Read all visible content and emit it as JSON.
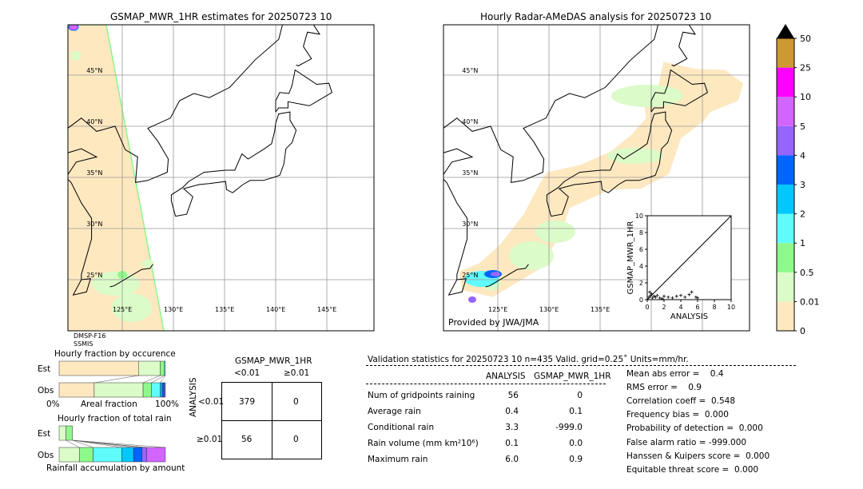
{
  "colors": {
    "cream": "#fde8c0",
    "c001": "#dbfbc8",
    "c05": "#8ef98a",
    "c1": "#60fcfc",
    "c2": "#00c8ff",
    "c3": "#0064ff",
    "c4": "#9664ff",
    "c5": "#d264ff",
    "c10": "#ff00ff",
    "c25": "#cc9933"
  },
  "chart_data": [
    {
      "type": "heatmap",
      "title": "GSMAP_MWR_1HR estimates for 20250723 10",
      "lon_ticks": [
        "125°E",
        "130°E",
        "135°E",
        "140°E",
        "145°E"
      ],
      "lat_ticks": [
        "45°N",
        "40°N",
        "35°N",
        "30°N",
        "25°N"
      ],
      "annotation": [
        "DMSP-F16",
        "SSMIS"
      ]
    },
    {
      "type": "heatmap",
      "title": "Hourly Radar-AMeDAS analysis for 20250723 10",
      "lon_ticks": [
        "125°E",
        "130°E",
        "135°E"
      ],
      "lat_ticks": [
        "45°N",
        "40°N",
        "35°N",
        "30°N",
        "25°N"
      ],
      "annotation": "Provided by JWA/JMA"
    },
    {
      "type": "scatter",
      "xlabel": "ANALYSIS",
      "ylabel": "GSMAP_MWR_1HR",
      "xlim": [
        0,
        10
      ],
      "ylim": [
        0,
        10
      ],
      "ticks": [
        "0",
        "2",
        "4",
        "6",
        "8",
        "10"
      ],
      "points": [
        [
          0.2,
          0.3
        ],
        [
          0.4,
          0.5
        ],
        [
          0.6,
          0.2
        ],
        [
          0.8,
          0.4
        ],
        [
          1.0,
          0.3
        ],
        [
          1.2,
          0.5
        ],
        [
          1.5,
          0.2
        ],
        [
          2.0,
          0.4
        ],
        [
          2.5,
          0.3
        ],
        [
          3.0,
          0.2
        ],
        [
          3.5,
          0.4
        ],
        [
          4.0,
          0.5
        ],
        [
          4.5,
          0.3
        ],
        [
          5.0,
          0.6
        ],
        [
          5.3,
          0.9
        ],
        [
          5.8,
          0.3
        ],
        [
          6.0,
          0.2
        ],
        [
          0.3,
          0.9
        ],
        [
          0.5,
          0.7
        ],
        [
          1.8,
          0.1
        ]
      ]
    },
    {
      "type": "bar",
      "title": "Colorbar",
      "levels": [
        "0",
        "0.01",
        "0.5",
        "1",
        "2",
        "3",
        "4",
        "5",
        "10",
        "25",
        "50"
      ]
    },
    {
      "type": "bar",
      "title": "Hourly fraction by occurence",
      "categories": [
        "Est",
        "Obs"
      ],
      "xlabel": "Areal fraction",
      "x_ticks": [
        "0%",
        "100%"
      ],
      "series": [
        {
          "row": "Est",
          "fractions": [
            0.75,
            0.2,
            0.04,
            0.01
          ]
        },
        {
          "row": "Obs",
          "fractions": [
            0.33,
            0.46,
            0.08,
            0.08,
            0.02,
            0.02,
            0.01
          ]
        }
      ]
    },
    {
      "type": "bar",
      "title": "Hourly fraction of total rain",
      "categories": [
        "Est",
        "Obs"
      ],
      "xlabel": "Rainfall accumulation by amount",
      "series": [
        {
          "row": "Est",
          "fractions": [
            0.065,
            0.06
          ]
        },
        {
          "row": "Obs",
          "fractions": [
            0.19,
            0.13,
            0.27,
            0.11,
            0.08,
            0.045,
            0.175
          ]
        }
      ]
    },
    {
      "type": "table",
      "title": "GSMAP_MWR_1HR",
      "col_headers": [
        "<0.01",
        "≥0.01"
      ],
      "row_label": "ANALYSIS",
      "row_headers": [
        "<0.01",
        "≥0.01"
      ],
      "cells": [
        [
          "379",
          "0"
        ],
        [
          "56",
          "0"
        ]
      ]
    }
  ],
  "stats": {
    "header": "Validation statistics for 20250723 10  n=435 Valid. grid=0.25˚ Units=mm/hr.",
    "col1": "ANALYSIS",
    "col2": "GSMAP_MWR_1HR",
    "rows": [
      {
        "label": "Num of gridpoints raining",
        "a": "56",
        "g": "0"
      },
      {
        "label": "Average rain",
        "a": "0.4",
        "g": "0.1"
      },
      {
        "label": "Conditional rain",
        "a": "3.3",
        "g": "-999.0"
      },
      {
        "label": "Rain volume (mm km²10⁶)",
        "a": "0.1",
        "g": "0.0"
      },
      {
        "label": "Maximum rain",
        "a": "6.0",
        "g": "0.9"
      }
    ],
    "scores": [
      "Mean abs error =    0.4",
      "RMS error =    0.9",
      "Correlation coeff =  0.548",
      "Frequency bias =  0.000",
      "Probability of detection =  0.000",
      "False alarm ratio = -999.000",
      "Hanssen & Kuipers score =  0.000",
      "Equitable threat score =  0.000"
    ]
  }
}
